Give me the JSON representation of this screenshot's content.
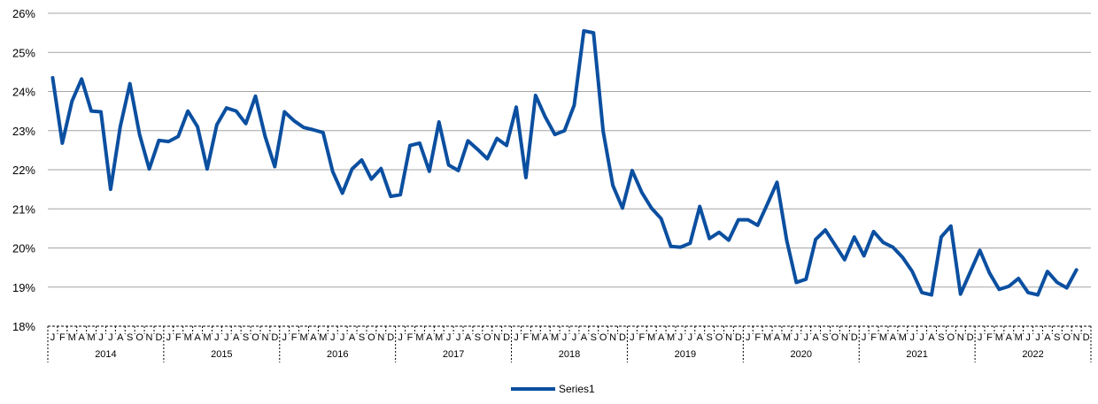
{
  "chart_data": {
    "type": "line",
    "title": "",
    "xlabel": "",
    "ylabel": "",
    "ylim": [
      18,
      26
    ],
    "y_ticks": [
      "18%",
      "19%",
      "20%",
      "21%",
      "22%",
      "23%",
      "24%",
      "25%",
      "26%"
    ],
    "y_tick_values": [
      18,
      19,
      20,
      21,
      22,
      23,
      24,
      25,
      26
    ],
    "grid": "horizontal",
    "legend_position": "bottom",
    "line_color": "#0B4FA0",
    "grid_color": "#A6A6A6",
    "months": [
      "J",
      "F",
      "M",
      "A",
      "M",
      "J",
      "J",
      "A",
      "S",
      "O",
      "N",
      "D"
    ],
    "years": [
      "2014",
      "2015",
      "2016",
      "2017",
      "2018",
      "2019",
      "2020",
      "2021",
      "2022"
    ],
    "series": [
      {
        "name": "Series1",
        "values": [
          24.35,
          22.68,
          23.75,
          24.32,
          23.5,
          23.48,
          21.5,
          23.1,
          24.2,
          22.9,
          22.02,
          22.75,
          22.72,
          22.85,
          23.5,
          23.1,
          22.02,
          23.15,
          23.58,
          23.5,
          23.18,
          23.88,
          22.85,
          22.08,
          23.48,
          23.25,
          23.08,
          23.02,
          22.95,
          21.95,
          21.4,
          22.02,
          22.25,
          21.76,
          22.03,
          21.32,
          21.36,
          22.62,
          22.68,
          21.96,
          23.22,
          22.12,
          21.98,
          22.74,
          22.52,
          22.28,
          22.8,
          22.62,
          23.6,
          21.8,
          23.9,
          23.35,
          22.9,
          23.0,
          23.65,
          25.55,
          25.5,
          22.98,
          21.6,
          21.02,
          21.98,
          21.42,
          21.02,
          20.75,
          20.04,
          20.02,
          20.12,
          21.06,
          20.24,
          20.4,
          20.2,
          20.72,
          20.72,
          20.58,
          21.12,
          21.68,
          20.2,
          19.12,
          19.2,
          20.22,
          20.46,
          20.08,
          19.7,
          20.28,
          19.8,
          20.42,
          20.14,
          20.02,
          19.76,
          19.4,
          18.86,
          18.8,
          20.28,
          20.56,
          18.82,
          19.38,
          19.94,
          19.36,
          18.94,
          19.02,
          19.22,
          18.86,
          18.8,
          19.4,
          19.12,
          18.98,
          19.44
        ]
      }
    ]
  }
}
